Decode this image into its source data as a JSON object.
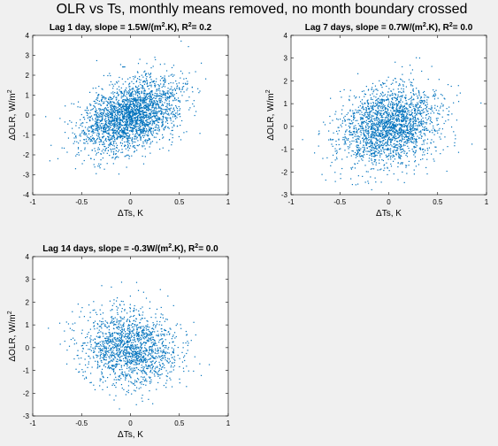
{
  "figure": {
    "suptitle": "OLR vs Ts, monthly means removed, no month boundary crossed",
    "point_color": "#0072bd",
    "background": "#f0f0f0"
  },
  "chart_data": [
    {
      "type": "scatter",
      "title_prefix": "Lag 1 day, slope = 1.5W/(m",
      "title_mid": ".K), R",
      "title_suffix": "= 0.2",
      "sup": "2",
      "xlabel": "ΔTs, K",
      "ylabel_main": "ΔOLR, W/m",
      "ylabel_sup": "2",
      "xlim": [
        -1,
        1
      ],
      "ylim": [
        -4,
        4
      ],
      "xticks": [
        -1,
        -0.5,
        0,
        0.5,
        1
      ],
      "yticks": [
        -4,
        -3,
        -2,
        -1,
        0,
        1,
        2,
        3,
        4
      ],
      "xticklabels": [
        "-1",
        "-0.5",
        "0",
        "0.5",
        "1"
      ],
      "yticklabels": [
        "-4",
        "-3",
        "-2",
        "-1",
        "0",
        "1",
        "2",
        "3",
        "4"
      ],
      "slope": 1.5,
      "r2": 0.2,
      "n": 2600,
      "x_std": 0.25,
      "resid_std": 0.85,
      "seed": 11
    },
    {
      "type": "scatter",
      "title_prefix": "Lag 7 days, slope = 0.7W/(m",
      "title_mid": ".K), R",
      "title_suffix": "= 0.0",
      "sup": "2",
      "xlabel": "ΔTs, K",
      "ylabel_main": "ΔOLR, W/m",
      "ylabel_sup": "2",
      "xlim": [
        -1,
        1
      ],
      "ylim": [
        -3,
        4
      ],
      "xticks": [
        -1,
        -0.5,
        0,
        0.5,
        1
      ],
      "yticks": [
        -3,
        -2,
        -1,
        0,
        1,
        2,
        3,
        4
      ],
      "xticklabels": [
        "-1",
        "-0.5",
        "0",
        "0.5",
        "1"
      ],
      "yticklabels": [
        "-3",
        "-2",
        "-1",
        "0",
        "1",
        "2",
        "3",
        "4"
      ],
      "slope": 0.7,
      "r2": 0.0,
      "n": 2200,
      "x_std": 0.25,
      "resid_std": 0.85,
      "seed": 23
    },
    {
      "type": "scatter",
      "title_prefix": "Lag 14 days, slope = -0.3W/(m",
      "title_mid": ".K), R",
      "title_suffix": "= 0.0",
      "sup": "2",
      "xlabel": "ΔTs, K",
      "ylabel_main": "ΔOLR, W/m",
      "ylabel_sup": "2",
      "xlim": [
        -1,
        1
      ],
      "ylim": [
        -3,
        4
      ],
      "xticks": [
        -1,
        -0.5,
        0,
        0.5,
        1
      ],
      "yticks": [
        -3,
        -2,
        -1,
        0,
        1,
        2,
        3,
        4
      ],
      "xticklabels": [
        "-1",
        "-0.5",
        "0",
        "0.5",
        "1"
      ],
      "yticklabels": [
        "-3",
        "-2",
        "-1",
        "0",
        "1",
        "2",
        "3",
        "4"
      ],
      "slope": -0.3,
      "r2": 0.0,
      "n": 1600,
      "x_std": 0.25,
      "resid_std": 0.85,
      "seed": 37
    }
  ]
}
